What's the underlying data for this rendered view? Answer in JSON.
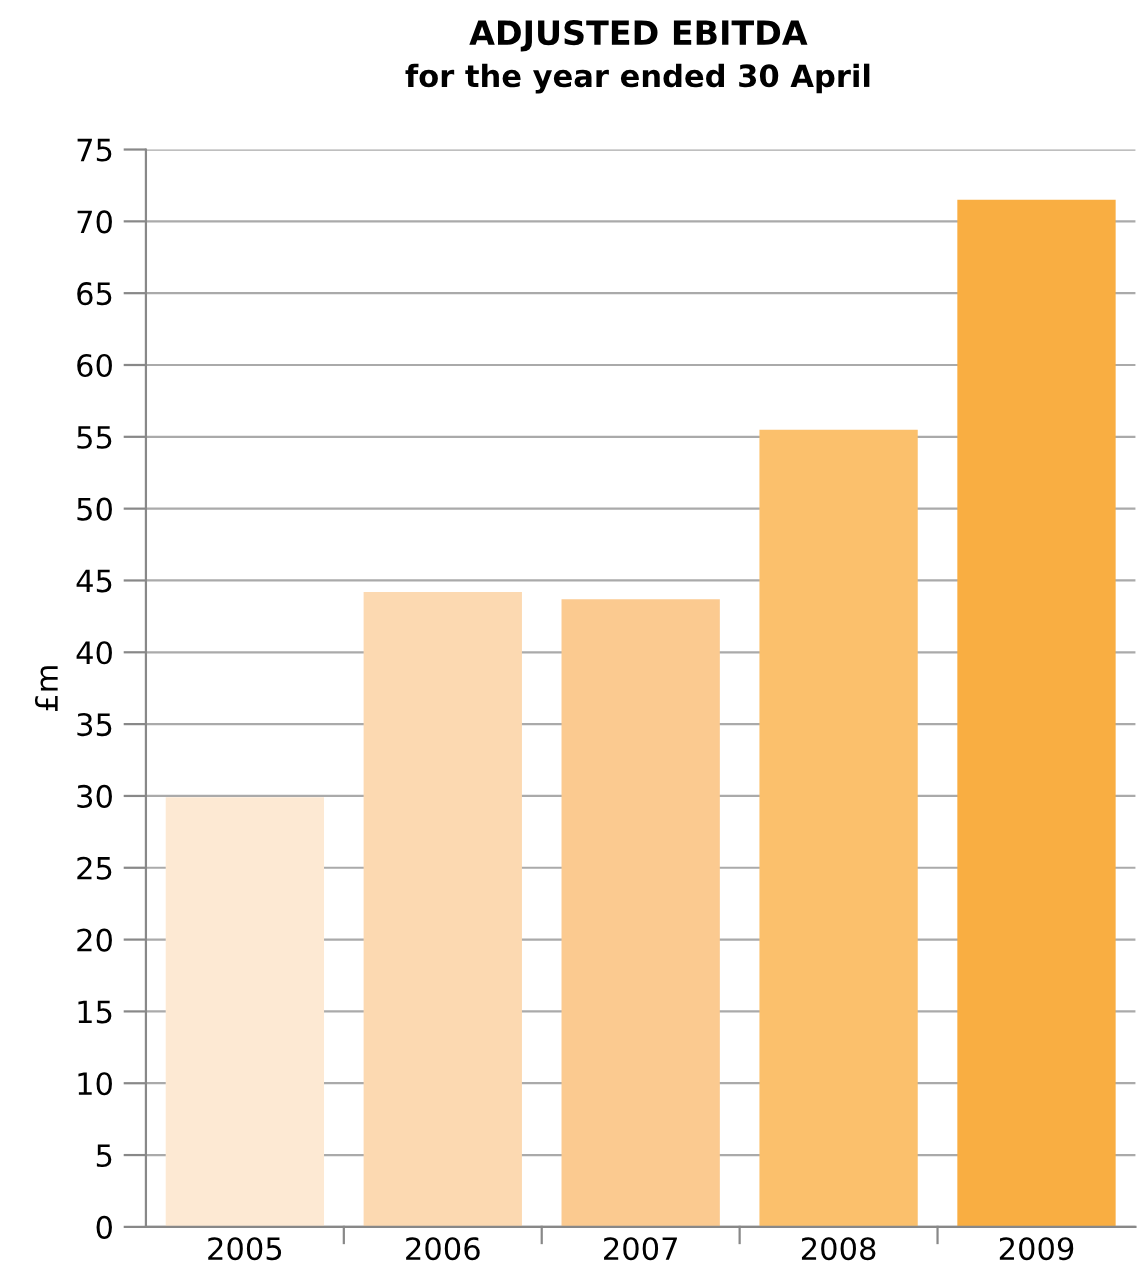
{
  "chart_data": {
    "type": "bar",
    "title": "ADJUSTED EBITDA",
    "subtitle": "for the year ended 30 April",
    "ylabel": "£m",
    "categories": [
      "2005",
      "2006",
      "2007",
      "2008",
      "2009"
    ],
    "values": [
      29.9,
      44.2,
      43.7,
      55.5,
      71.5
    ],
    "colors": [
      "#fde9d3",
      "#fcd9b1",
      "#fbca90",
      "#fbc06c",
      "#f9ae42"
    ],
    "ylim": [
      0,
      75
    ],
    "yticks": [
      0,
      5,
      10,
      15,
      20,
      25,
      30,
      35,
      40,
      45,
      50,
      55,
      60,
      65,
      70,
      75
    ],
    "grid": "y",
    "legend": false
  }
}
